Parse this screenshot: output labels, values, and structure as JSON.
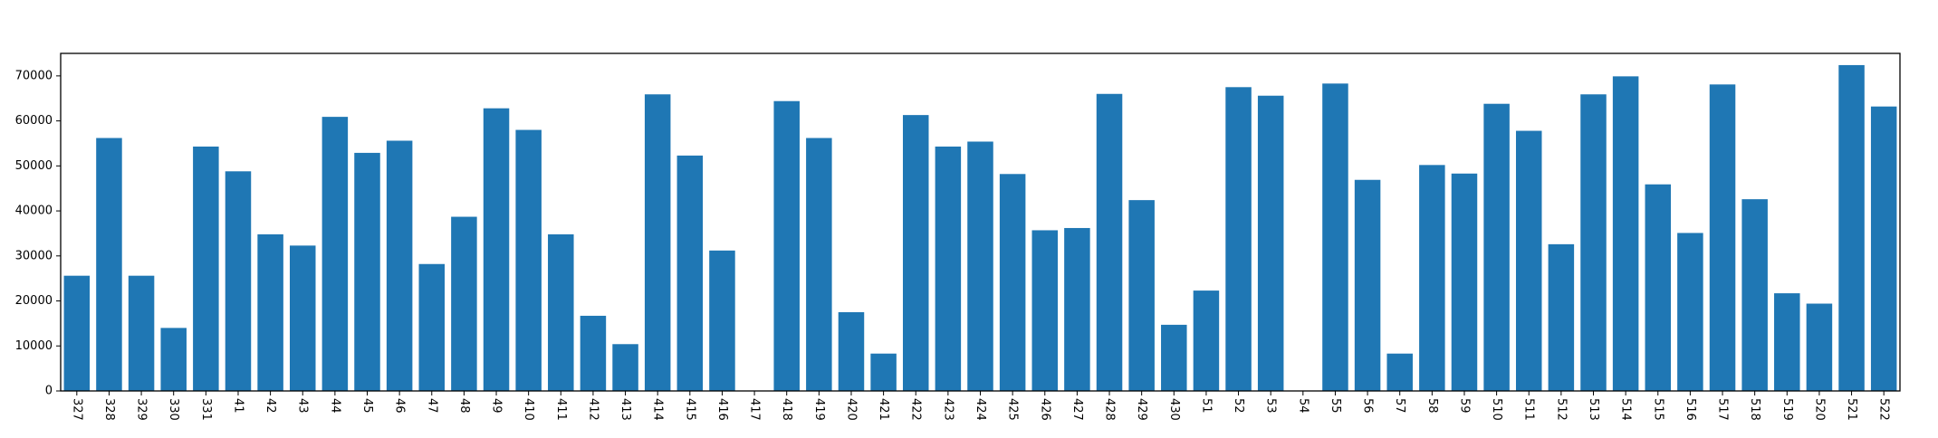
{
  "chart_data": {
    "type": "bar",
    "title": "",
    "xlabel": "",
    "ylabel": "",
    "ylim": [
      0,
      75000
    ],
    "yticks": [
      0,
      10000,
      20000,
      30000,
      40000,
      50000,
      60000,
      70000
    ],
    "grid": false,
    "bar_color": "#1f77b4",
    "categories": [
      "327",
      "328",
      "329",
      "330",
      "331",
      "41",
      "42",
      "43",
      "44",
      "45",
      "46",
      "47",
      "48",
      "49",
      "410",
      "411",
      "412",
      "413",
      "414",
      "415",
      "416",
      "417",
      "418",
      "419",
      "420",
      "421",
      "422",
      "423",
      "424",
      "425",
      "426",
      "427",
      "428",
      "429",
      "430",
      "51",
      "52",
      "53",
      "54",
      "55",
      "56",
      "57",
      "58",
      "59",
      "510",
      "511",
      "512",
      "513",
      "514",
      "515",
      "516",
      "517",
      "518",
      "519",
      "520",
      "521",
      "522"
    ],
    "values": [
      25600,
      56200,
      25600,
      14000,
      54300,
      48800,
      34800,
      32300,
      60900,
      52900,
      55600,
      28200,
      38700,
      62800,
      58000,
      34800,
      16700,
      10400,
      65900,
      52300,
      31200,
      0,
      64400,
      56200,
      17500,
      8300,
      61300,
      54300,
      55400,
      48200,
      35700,
      36200,
      66000,
      42400,
      14700,
      22300,
      67500,
      65600,
      0,
      68300,
      46900,
      8300,
      50200,
      48300,
      63800,
      57800,
      32600,
      65900,
      69900,
      45900,
      35100,
      68100,
      42600,
      21700,
      19400,
      72400,
      63200
    ]
  }
}
